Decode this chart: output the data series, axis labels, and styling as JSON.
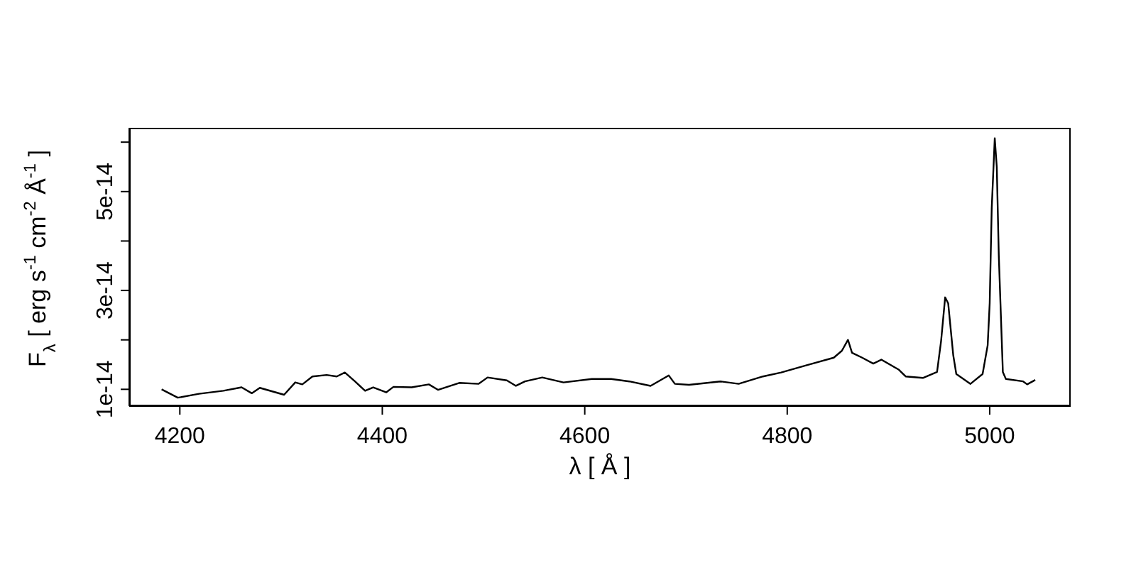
{
  "chart_data": {
    "type": "line",
    "xlabel": "λ [ Å ]",
    "ylabel": "F$_{λ}$ [ erg s$^{-1}$ cm$^{-2}$ Å$^{-1}$ ]",
    "x": [
      4182,
      4198,
      4219,
      4243,
      4261,
      4271,
      4279,
      4303,
      4314,
      4321,
      4331,
      4345,
      4355,
      4363,
      4373,
      4383,
      4391,
      4404,
      4411,
      4429,
      4446,
      4455,
      4476,
      4495,
      4504,
      4523,
      4532,
      4541,
      4558,
      4579,
      4607,
      4626,
      4644,
      4665,
      4683,
      4689,
      4703,
      4734,
      4752,
      4776,
      4794,
      4818,
      4846,
      4854,
      4860,
      4864,
      4874,
      4885,
      4893,
      4910,
      4917,
      4934,
      4948,
      4952,
      4956,
      4959,
      4964,
      4967,
      4981,
      4993,
      4998,
      5000,
      5002,
      5005,
      5007,
      5009,
      5013,
      5016,
      5033,
      5037,
      5045
    ],
    "series": [
      {
        "color": "#000000",
        "values": [
          1e-14,
          8.3e-15,
          9.1e-15,
          9.7e-15,
          1.04e-14,
          9.2e-15,
          1.03e-14,
          8.9e-15,
          1.14e-14,
          1.1e-14,
          1.26e-14,
          1.29e-14,
          1.26e-14,
          1.34e-14,
          1.16e-14,
          9.7e-15,
          1.04e-14,
          9.4e-15,
          1.05e-14,
          1.04e-14,
          1.1e-14,
          9.9e-15,
          1.13e-14,
          1.11e-14,
          1.24e-14,
          1.18e-14,
          1.07e-14,
          1.16e-14,
          1.24e-14,
          1.14e-14,
          1.21e-14,
          1.21e-14,
          1.16e-14,
          1.07e-14,
          1.28e-14,
          1.11e-14,
          1.09e-14,
          1.16e-14,
          1.11e-14,
          1.26e-14,
          1.34e-14,
          1.48e-14,
          1.64e-14,
          1.78e-14,
          2e-14,
          1.74e-14,
          1.64e-14,
          1.52e-14,
          1.6e-14,
          1.4e-14,
          1.26e-14,
          1.23e-14,
          1.35e-14,
          1.98e-14,
          2.86e-14,
          2.74e-14,
          1.69e-14,
          1.31e-14,
          1.11e-14,
          1.31e-14,
          1.89e-14,
          2.74e-14,
          4.66e-14,
          6.08e-14,
          5.5e-14,
          3.7e-14,
          1.35e-14,
          1.21e-14,
          1.16e-14,
          1.1e-14,
          1.19e-14
        ]
      }
    ],
    "xlim": [
      4150,
      5080
    ],
    "xticks": [
      4200,
      4400,
      4600,
      4800,
      5000
    ],
    "ylim": [
      6.6e-15,
      6.29e-14
    ],
    "yticks": [
      {
        "value": 1e-14,
        "label": "1e-14"
      },
      {
        "value": 2e-14,
        "label": null
      },
      {
        "value": 3e-14,
        "label": "3e-14"
      },
      {
        "value": 4e-14,
        "label": null
      },
      {
        "value": 5e-14,
        "label": "5e-14"
      },
      {
        "value": 6e-14,
        "label": null
      }
    ],
    "grid": false,
    "legend": false,
    "line_style": "solid"
  }
}
